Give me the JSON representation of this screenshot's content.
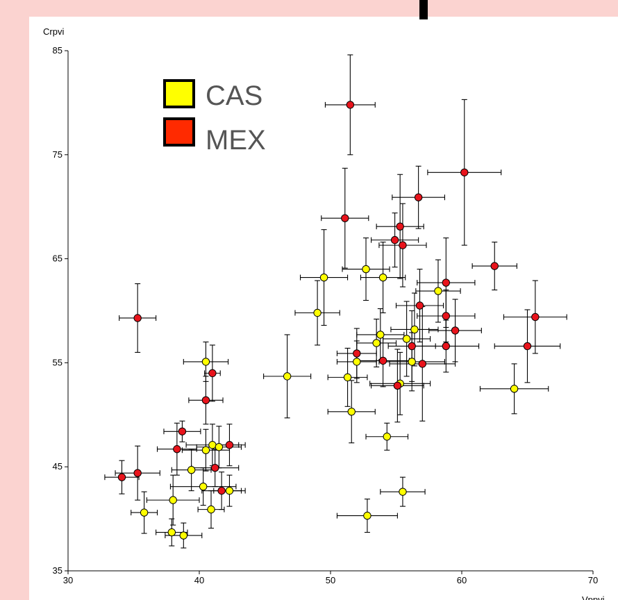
{
  "chart_data": {
    "type": "scatter",
    "title": "",
    "xlabel": "Vppvi",
    "ylabel": "Crpvi",
    "xlim": [
      30,
      70
    ],
    "ylim": [
      35,
      85
    ],
    "xticks": [
      30,
      40,
      50,
      60,
      70
    ],
    "yticks": [
      35,
      45,
      55,
      65,
      75,
      85
    ],
    "grid": false,
    "error_bars": true,
    "legend_position": "top-left",
    "series": [
      {
        "name": "CAS",
        "color": "#ffff00",
        "points": [
          {
            "x": 35.8,
            "y": 40.6,
            "xerr": 1.0,
            "yerr": 2.0
          },
          {
            "x": 37.9,
            "y": 38.7,
            "xerr": 1.2,
            "yerr": 1.3
          },
          {
            "x": 38.8,
            "y": 38.4,
            "xerr": 1.4,
            "yerr": 1.2
          },
          {
            "x": 38.0,
            "y": 41.8,
            "xerr": 2.0,
            "yerr": 2.4
          },
          {
            "x": 39.4,
            "y": 44.7,
            "xerr": 1.5,
            "yerr": 2.0
          },
          {
            "x": 40.3,
            "y": 43.1,
            "xerr": 2.5,
            "yerr": 1.8
          },
          {
            "x": 40.5,
            "y": 46.6,
            "xerr": 1.8,
            "yerr": 2.0
          },
          {
            "x": 41.0,
            "y": 47.1,
            "xerr": 2.0,
            "yerr": 2.0
          },
          {
            "x": 41.5,
            "y": 46.9,
            "xerr": 1.7,
            "yerr": 2.0
          },
          {
            "x": 40.9,
            "y": 40.9,
            "xerr": 1.0,
            "yerr": 1.8
          },
          {
            "x": 42.3,
            "y": 42.7,
            "xerr": 1.2,
            "yerr": 1.5
          },
          {
            "x": 40.5,
            "y": 55.1,
            "xerr": 1.7,
            "yerr": 1.9
          },
          {
            "x": 46.7,
            "y": 53.7,
            "xerr": 1.8,
            "yerr": 4.0
          },
          {
            "x": 49.5,
            "y": 63.2,
            "xerr": 1.8,
            "yerr": 4.6
          },
          {
            "x": 49.0,
            "y": 59.8,
            "xerr": 1.7,
            "yerr": 3.1
          },
          {
            "x": 51.3,
            "y": 53.6,
            "xerr": 1.5,
            "yerr": 2.8
          },
          {
            "x": 51.6,
            "y": 50.3,
            "xerr": 1.8,
            "yerr": 3.0
          },
          {
            "x": 52.0,
            "y": 55.1,
            "xerr": 1.5,
            "yerr": 2.0
          },
          {
            "x": 52.7,
            "y": 64.0,
            "xerr": 1.8,
            "yerr": 3.0
          },
          {
            "x": 53.5,
            "y": 56.9,
            "xerr": 1.5,
            "yerr": 2.3
          },
          {
            "x": 53.8,
            "y": 57.7,
            "xerr": 1.8,
            "yerr": 2.5
          },
          {
            "x": 54.0,
            "y": 63.2,
            "xerr": 1.7,
            "yerr": 3.4
          },
          {
            "x": 54.3,
            "y": 47.9,
            "xerr": 1.6,
            "yerr": 1.3
          },
          {
            "x": 52.8,
            "y": 40.3,
            "xerr": 2.3,
            "yerr": 1.6
          },
          {
            "x": 55.5,
            "y": 42.6,
            "xerr": 1.7,
            "yerr": 1.4
          },
          {
            "x": 55.3,
            "y": 53.0,
            "xerr": 2.3,
            "yerr": 3.0
          },
          {
            "x": 55.8,
            "y": 57.3,
            "xerr": 1.8,
            "yerr": 3.6
          },
          {
            "x": 56.2,
            "y": 55.1,
            "xerr": 2.5,
            "yerr": 2.8
          },
          {
            "x": 56.4,
            "y": 58.2,
            "xerr": 1.8,
            "yerr": 3.5
          },
          {
            "x": 58.2,
            "y": 61.9,
            "xerr": 1.7,
            "yerr": 3.0
          },
          {
            "x": 64.0,
            "y": 52.5,
            "xerr": 2.6,
            "yerr": 2.4
          }
        ]
      },
      {
        "name": "MEX",
        "color": "#e8141c",
        "points": [
          {
            "x": 35.3,
            "y": 59.3,
            "xerr": 1.4,
            "yerr": 3.3
          },
          {
            "x": 34.1,
            "y": 44.0,
            "xerr": 1.3,
            "yerr": 1.6
          },
          {
            "x": 35.3,
            "y": 44.4,
            "xerr": 1.7,
            "yerr": 2.6
          },
          {
            "x": 38.3,
            "y": 46.7,
            "xerr": 1.5,
            "yerr": 2.5
          },
          {
            "x": 38.7,
            "y": 48.4,
            "xerr": 1.4,
            "yerr": 1.0
          },
          {
            "x": 40.5,
            "y": 51.4,
            "xerr": 1.3,
            "yerr": 2.3
          },
          {
            "x": 41.0,
            "y": 54.0,
            "xerr": 0.6,
            "yerr": 2.7
          },
          {
            "x": 41.2,
            "y": 44.9,
            "xerr": 1.8,
            "yerr": 1.8
          },
          {
            "x": 41.7,
            "y": 42.7,
            "xerr": 1.5,
            "yerr": 1.8
          },
          {
            "x": 42.3,
            "y": 47.1,
            "xerr": 1.2,
            "yerr": 2.0
          },
          {
            "x": 51.5,
            "y": 79.8,
            "xerr": 1.9,
            "yerr": 4.8
          },
          {
            "x": 51.1,
            "y": 68.9,
            "xerr": 1.8,
            "yerr": 4.8
          },
          {
            "x": 52.0,
            "y": 55.9,
            "xerr": 1.5,
            "yerr": 2.4
          },
          {
            "x": 54.0,
            "y": 55.2,
            "xerr": 2.0,
            "yerr": 2.5
          },
          {
            "x": 54.9,
            "y": 66.8,
            "xerr": 1.8,
            "yerr": 2.6
          },
          {
            "x": 55.3,
            "y": 68.1,
            "xerr": 1.8,
            "yerr": 5.0
          },
          {
            "x": 55.5,
            "y": 66.3,
            "xerr": 1.8,
            "yerr": 4.0
          },
          {
            "x": 55.1,
            "y": 52.8,
            "xerr": 2.0,
            "yerr": 3.5
          },
          {
            "x": 56.2,
            "y": 56.6,
            "xerr": 1.8,
            "yerr": 3.4
          },
          {
            "x": 56.7,
            "y": 70.9,
            "xerr": 2.0,
            "yerr": 3.0
          },
          {
            "x": 56.8,
            "y": 60.5,
            "xerr": 1.8,
            "yerr": 3.5
          },
          {
            "x": 57.0,
            "y": 54.9,
            "xerr": 2.5,
            "yerr": 5.5
          },
          {
            "x": 58.8,
            "y": 62.7,
            "xerr": 2.2,
            "yerr": 4.3
          },
          {
            "x": 58.8,
            "y": 59.5,
            "xerr": 2.2,
            "yerr": 2.5
          },
          {
            "x": 58.8,
            "y": 56.6,
            "xerr": 2.5,
            "yerr": 2.5
          },
          {
            "x": 59.5,
            "y": 58.1,
            "xerr": 2.0,
            "yerr": 3.0
          },
          {
            "x": 60.2,
            "y": 73.3,
            "xerr": 2.8,
            "yerr": 7.0
          },
          {
            "x": 62.5,
            "y": 64.3,
            "xerr": 1.7,
            "yerr": 2.3
          },
          {
            "x": 65.0,
            "y": 56.6,
            "xerr": 2.5,
            "yerr": 3.5
          },
          {
            "x": 65.6,
            "y": 59.4,
            "xerr": 2.4,
            "yerr": 3.5
          }
        ]
      }
    ]
  }
}
